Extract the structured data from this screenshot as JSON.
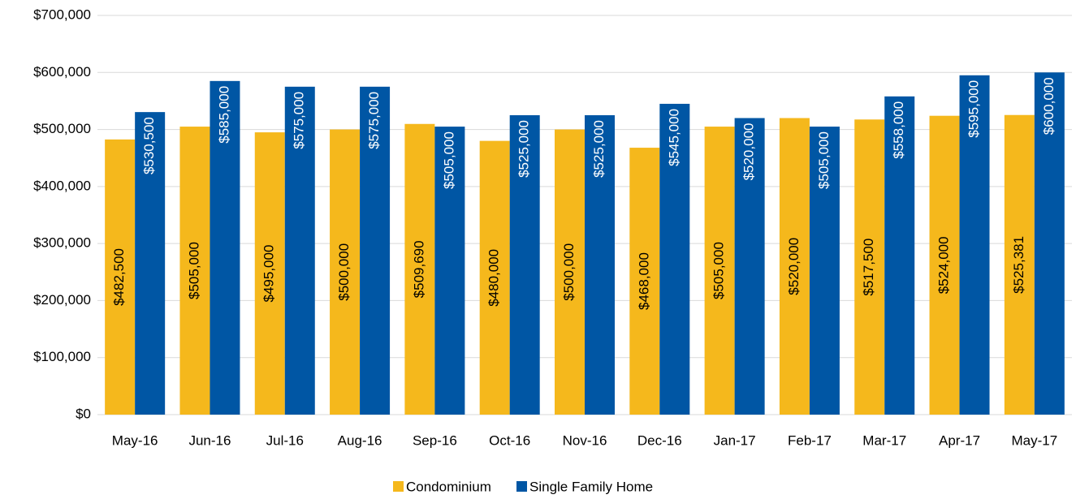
{
  "chart_data": {
    "type": "bar",
    "categories": [
      "May-16",
      "Jun-16",
      "Jul-16",
      "Aug-16",
      "Sep-16",
      "Oct-16",
      "Nov-16",
      "Dec-16",
      "Jan-17",
      "Feb-17",
      "Mar-17",
      "Apr-17",
      "May-17"
    ],
    "series": [
      {
        "name": "Condominium",
        "color": "#f5b81c",
        "values": [
          482500,
          505000,
          495000,
          500000,
          509690,
          480000,
          500000,
          468000,
          505000,
          520000,
          517500,
          524000,
          525381
        ],
        "value_labels": [
          "$482,500",
          "$505,000",
          "$495,000",
          "$500,000",
          "$509,690",
          "$480,000",
          "$500,000",
          "$468,000",
          "$505,000",
          "$520,000",
          "$517,500",
          "$524,000",
          "$525,381"
        ]
      },
      {
        "name": "Single Family Home",
        "color": "#0056a4",
        "values": [
          530500,
          585000,
          575000,
          575000,
          505000,
          525000,
          525000,
          545000,
          520000,
          505000,
          558000,
          595000,
          600000
        ],
        "value_labels": [
          "$530,500",
          "$585,000",
          "$575,000",
          "$575,000",
          "$505,000",
          "$525,000",
          "$525,000",
          "$545,000",
          "$520,000",
          "$505,000",
          "$558,000",
          "$595,000",
          "$600,000"
        ]
      }
    ],
    "ylim": [
      0,
      700000
    ],
    "yticks": [
      {
        "value": 0,
        "label": "$0"
      },
      {
        "value": 100000,
        "label": "$100,000"
      },
      {
        "value": 200000,
        "label": "$200,000"
      },
      {
        "value": 300000,
        "label": "$300,000"
      },
      {
        "value": 400000,
        "label": "$400,000"
      },
      {
        "value": 500000,
        "label": "$500,000"
      },
      {
        "value": 600000,
        "label": "$600,000"
      },
      {
        "value": 700000,
        "label": "$700,000"
      }
    ],
    "grid": true,
    "legend": "bottom"
  }
}
